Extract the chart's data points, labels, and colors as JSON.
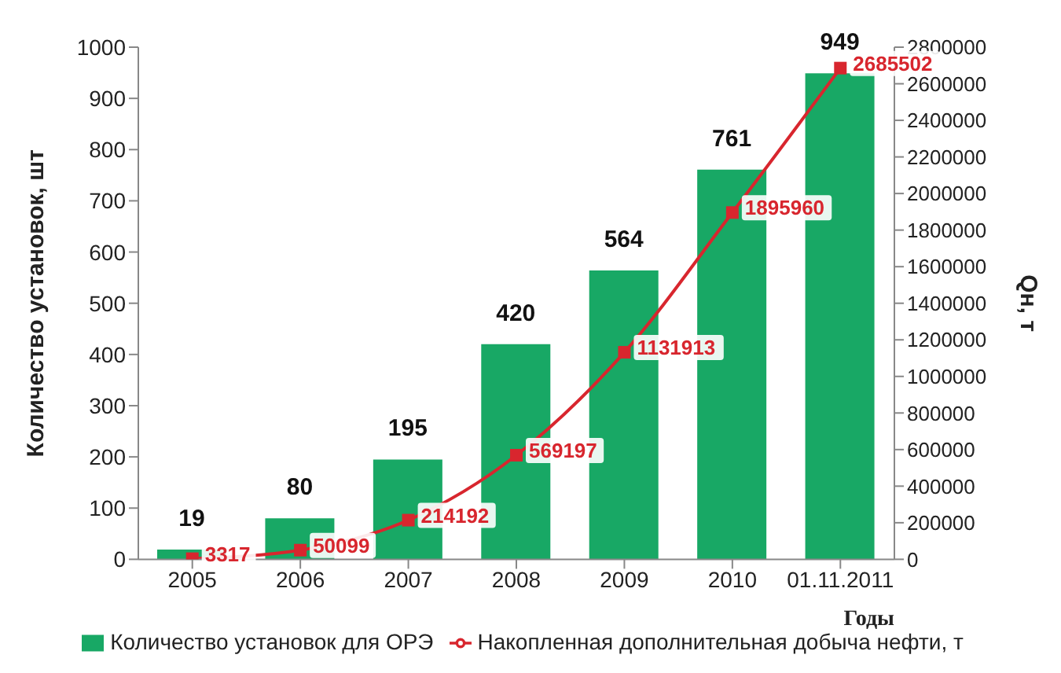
{
  "chart_data": {
    "type": "bar",
    "categories": [
      "2005",
      "2006",
      "2007",
      "2008",
      "2009",
      "2010",
      "01.11.2011"
    ],
    "series": [
      {
        "name": "Количество установок для ОРЭ",
        "color": "#18a865",
        "values": [
          19,
          80,
          195,
          420,
          564,
          761,
          949
        ]
      },
      {
        "name": "Накопленная дополнительная добыча нефти, т",
        "type": "line",
        "axis": "y2",
        "color": "#d8262e",
        "marker": "square",
        "values": [
          3317,
          50099,
          214192,
          569197,
          1131913,
          1895960,
          2685502
        ]
      }
    ],
    "xlabel": "Годы",
    "ylabel": "Количество установок, шт",
    "y2label": "Qн, т",
    "ylim": [
      0,
      1000
    ],
    "yticks": [
      0,
      100,
      200,
      300,
      400,
      500,
      600,
      700,
      800,
      900,
      1000
    ],
    "y2lim": [
      0,
      2800000
    ],
    "y2ticks": [
      0,
      200000,
      400000,
      600000,
      800000,
      1000000,
      1200000,
      1400000,
      1600000,
      1800000,
      2000000,
      2200000,
      2400000,
      2600000,
      2800000
    ],
    "data_labels": true,
    "grid": false,
    "legend": "bottom"
  }
}
